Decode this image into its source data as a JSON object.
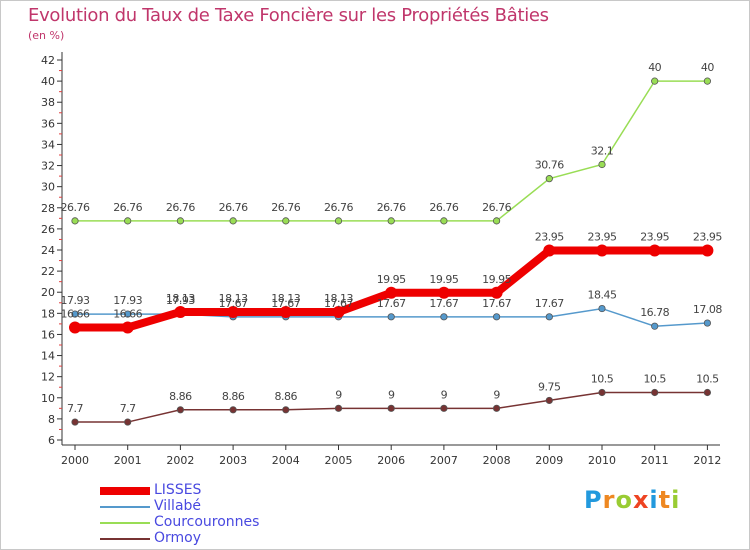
{
  "chart_data": {
    "type": "line",
    "title": "Evolution du Taux de Taxe Foncière sur les Propriétés Bâties",
    "subtitle": "(en %)",
    "x": [
      "2000",
      "2001",
      "2002",
      "2003",
      "2004",
      "2005",
      "2006",
      "2007",
      "2008",
      "2009",
      "2010",
      "2011",
      "2012"
    ],
    "yticks": [
      "6",
      "8",
      "10",
      "12",
      "14",
      "16",
      "18",
      "20",
      "22",
      "24",
      "26",
      "28",
      "30",
      "32",
      "34",
      "36",
      "38",
      "40",
      "42"
    ],
    "ylim": [
      6,
      42
    ],
    "grid": false,
    "legend_position": "bottom-left",
    "series": [
      {
        "name": "Courcouronnes",
        "color": "#99dd55",
        "values": [
          26.76,
          26.76,
          26.76,
          26.76,
          26.76,
          26.76,
          26.76,
          26.76,
          26.76,
          30.76,
          32.1,
          40,
          40
        ],
        "labels": [
          "26.76",
          "26.76",
          "26.76",
          "26.76",
          "26.76",
          "26.76",
          "26.76",
          "26.76",
          "26.76",
          "30.76",
          "32.1",
          "40",
          "40"
        ]
      },
      {
        "name": "Villabé",
        "color": "#5599cc",
        "values": [
          17.93,
          17.93,
          17.93,
          17.67,
          17.67,
          17.67,
          17.67,
          17.67,
          17.67,
          17.67,
          18.45,
          16.78,
          17.08
        ],
        "labels": [
          "17.93",
          "17.93",
          "17.93",
          "17.67",
          "17.67",
          "17.67",
          "17.67",
          "17.67",
          "17.67",
          "17.67",
          "18.45",
          "16.78",
          "17.08"
        ]
      },
      {
        "name": "Ormoy",
        "color": "#773333",
        "values": [
          7.7,
          7.7,
          8.86,
          8.86,
          8.86,
          9,
          9,
          9,
          9,
          9.75,
          10.5,
          10.5,
          10.5
        ],
        "labels": [
          "7.7",
          "7.7",
          "8.86",
          "8.86",
          "8.86",
          "9",
          "9",
          "9",
          "9",
          "9.75",
          "10.5",
          "10.5",
          "10.5"
        ]
      },
      {
        "name": "LISSES",
        "color": "#ee0000",
        "values": [
          16.66,
          16.66,
          18.13,
          18.13,
          18.13,
          18.13,
          19.95,
          19.95,
          19.95,
          23.95,
          23.95,
          23.95,
          23.95
        ],
        "labels": [
          "16.66",
          "16.66",
          "18.13",
          "18.13",
          "18.13",
          "18.13",
          "19.95",
          "19.95",
          "19.95",
          "23.95",
          "23.95",
          "23.95",
          "23.95"
        ]
      }
    ],
    "legend": [
      {
        "name": "LISSES",
        "color": "#ee0000"
      },
      {
        "name": "Villabé",
        "color": "#5599cc"
      },
      {
        "name": "Courcouronnes",
        "color": "#99dd55"
      },
      {
        "name": "Ormoy",
        "color": "#773333"
      }
    ]
  },
  "logo": {
    "letters": [
      "P",
      "r",
      "o",
      "x",
      "i",
      "t",
      "i"
    ],
    "colors": [
      "#2299dd",
      "#ee8822",
      "#99cc33",
      "#ee4422",
      "#2299dd",
      "#ee8822",
      "#99cc33"
    ]
  }
}
